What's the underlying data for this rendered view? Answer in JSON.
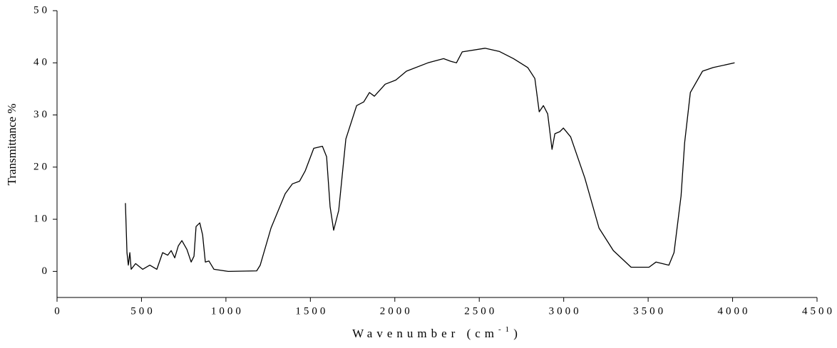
{
  "chart_data": {
    "type": "line",
    "x_label": {
      "text": "Wavenumber (cm",
      "superscript": "-1",
      "suffix": ")"
    },
    "y_label": "Transmittance %",
    "xlim": [
      0,
      4500
    ],
    "xticks": [
      0,
      500,
      1000,
      1500,
      2000,
      2500,
      3000,
      3500,
      4000,
      4500
    ],
    "ylim": [
      -5,
      50
    ],
    "yticks": [
      0,
      10,
      20,
      30,
      40,
      50
    ],
    "grid": false,
    "series": [
      {
        "color": "#000000",
        "x": [
          405,
          414,
          422,
          431,
          439,
          465,
          507,
          549,
          591,
          625,
          655,
          676,
          697,
          718,
          739,
          769,
          794,
          811,
          823,
          845,
          862,
          878,
          899,
          929,
          1014,
          1182,
          1203,
          1267,
          1351,
          1394,
          1436,
          1470,
          1520,
          1571,
          1596,
          1617,
          1638,
          1668,
          1710,
          1774,
          1816,
          1850,
          1879,
          1943,
          2006,
          2069,
          2196,
          2289,
          2331,
          2365,
          2399,
          2534,
          2618,
          2703,
          2787,
          2829,
          2855,
          2880,
          2905,
          2931,
          2948,
          2977,
          2998,
          3041,
          3125,
          3209,
          3294,
          3399,
          3505,
          3547,
          3623,
          3653,
          3695,
          3716,
          3750,
          3822,
          3885,
          4012
        ],
        "values": [
          13.1,
          3.6,
          1.2,
          3.6,
          0.4,
          1.5,
          0.4,
          1.2,
          0.4,
          3.6,
          3.1,
          4.0,
          2.6,
          4.9,
          5.9,
          4.2,
          1.8,
          2.9,
          8.6,
          9.3,
          7.0,
          1.8,
          2.0,
          0.4,
          0,
          0.1,
          1.2,
          8.3,
          14.9,
          16.8,
          17.3,
          19.3,
          23.6,
          24.0,
          22.0,
          12.4,
          7.9,
          11.7,
          25.4,
          31.8,
          32.5,
          34.3,
          33.6,
          35.9,
          36.7,
          38.4,
          40.0,
          40.8,
          40.3,
          40.0,
          42.1,
          42.8,
          42.2,
          40.8,
          39.1,
          37.0,
          30.6,
          31.8,
          30.2,
          23.4,
          26.4,
          26.8,
          27.5,
          25.8,
          17.9,
          8.3,
          4.0,
          0.8,
          0.8,
          1.8,
          1.2,
          3.6,
          14.5,
          24.7,
          34.3,
          38.4,
          39.1,
          40.0
        ]
      }
    ]
  }
}
